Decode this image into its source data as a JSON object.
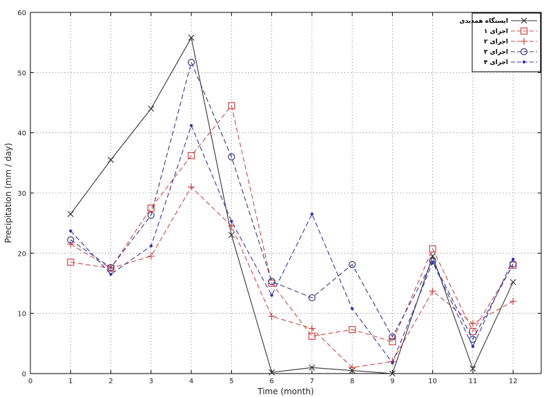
{
  "chart_data": {
    "type": "line",
    "title": "",
    "xlabel": "Time (month)",
    "ylabel": "Precipitation (mm / day)",
    "xlim": [
      0,
      12.7
    ],
    "ylim": [
      0,
      60
    ],
    "xticks": [
      0,
      1,
      2,
      3,
      4,
      5,
      6,
      7,
      8,
      9,
      10,
      11,
      12
    ],
    "yticks": [
      0,
      10,
      20,
      30,
      40,
      50,
      60
    ],
    "grid": true,
    "legend_position": "top-right",
    "x": [
      1,
      2,
      3,
      4,
      5,
      6,
      7,
      8,
      9,
      10,
      11,
      12
    ],
    "series": [
      {
        "name": "ایستگاه همدیدی",
        "color": "#333333",
        "marker": "x",
        "line": "solid",
        "values": [
          26.5,
          35.5,
          44.0,
          55.8,
          23.0,
          0.2,
          1.0,
          0.5,
          0.0,
          19.5,
          0.8,
          15.2
        ]
      },
      {
        "name": "اجرای ۱",
        "color": "#cc4444",
        "marker": "square",
        "line": "dashed",
        "values": [
          18.5,
          17.5,
          27.5,
          36.2,
          44.5,
          15.0,
          6.2,
          7.3,
          5.3,
          20.7,
          7.0,
          18.0
        ]
      },
      {
        "name": "اجرای ۲",
        "color": "#cc4444",
        "marker": "plus",
        "line": "dashed",
        "values": [
          21.5,
          17.5,
          19.5,
          31.0,
          24.5,
          9.5,
          7.5,
          1.0,
          2.0,
          13.7,
          8.3,
          12.0
        ]
      },
      {
        "name": "اجرای ۳",
        "color": "#33337f",
        "marker": "circle",
        "line": "dashed",
        "values": [
          22.2,
          17.6,
          26.3,
          51.7,
          36.0,
          15.3,
          12.6,
          18.1,
          6.1,
          18.7,
          5.7,
          18.2
        ]
      },
      {
        "name": "اجرای ۴",
        "color": "#3333aa",
        "marker": "dot",
        "line": "dashed",
        "values": [
          23.7,
          16.5,
          21.2,
          41.2,
          25.3,
          13.0,
          26.5,
          10.8,
          1.8,
          18.5,
          4.5,
          19.0
        ]
      }
    ]
  }
}
